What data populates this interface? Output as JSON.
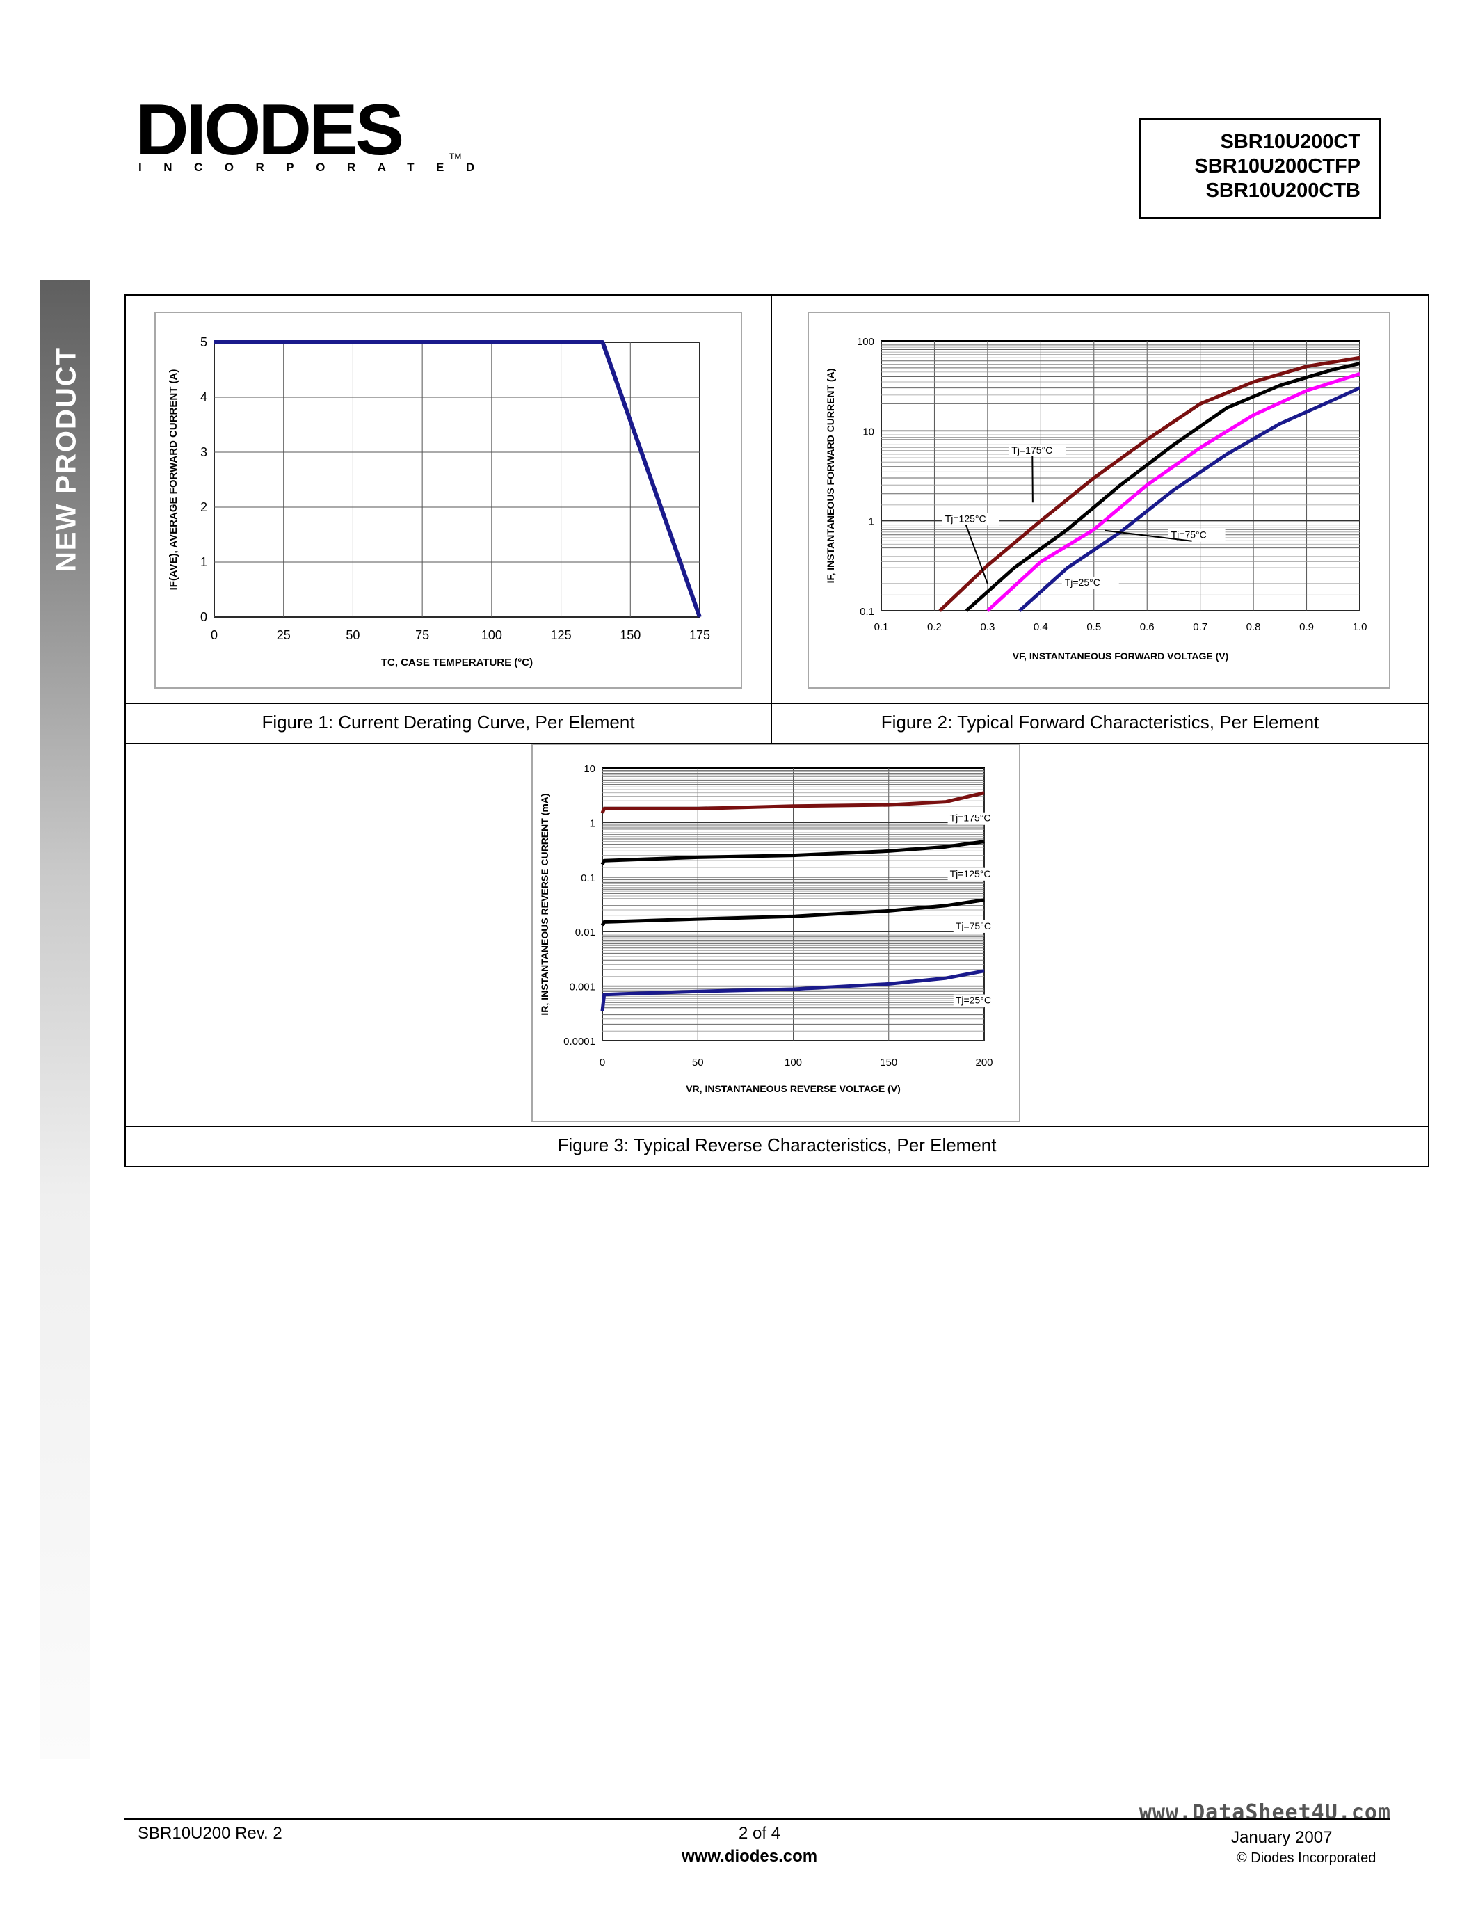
{
  "brand": {
    "name": "DIODES",
    "subtitle": "INCORPORATED",
    "trademark": "TM"
  },
  "part_numbers": [
    "SBR10U200CT",
    "SBR10U200CTFP",
    "SBR10U200CTB"
  ],
  "sidebar": {
    "label": "NEW PRODUCT"
  },
  "figures": {
    "fig1_caption": "Figure 1: Current Derating Curve, Per Element",
    "fig2_caption": "Figure 2: Typical Forward Characteristics, Per Element",
    "fig3_caption": "Figure 3: Typical Reverse Characteristics, Per Element"
  },
  "chart_data": [
    {
      "type": "line",
      "xlabel": "T<sub>C</sub>, CASE TEMPERATURE (°C)",
      "xlabel_text": "TC, CASE TEMPERATURE (°C)",
      "ylabel_text": "IF(AVE), AVERAGE FORWARD CURRENT (A)",
      "xlim": [
        0,
        175
      ],
      "ylim": [
        0,
        5
      ],
      "x_ticks": [
        "0",
        "25",
        "50",
        "75",
        "100",
        "125",
        "150",
        "175"
      ],
      "y_ticks": [
        "0",
        "1",
        "2",
        "3",
        "4",
        "5"
      ],
      "grid": true,
      "series": [
        {
          "color": "#1a1a8c",
          "x": [
            0,
            140,
            175
          ],
          "y": [
            5,
            5,
            0
          ]
        }
      ]
    },
    {
      "type": "line",
      "xlabel_text": "VF, INSTANTANEOUS FORWARD VOLTAGE (V)",
      "ylabel_text": "IF, INSTANTANEOUS FORWARD CURRENT (A)",
      "xlim": [
        0.1,
        1.0
      ],
      "ylim": [
        0.1,
        100
      ],
      "yscale": "log",
      "x_ticks": [
        "0.1",
        "0.2",
        "0.3",
        "0.4",
        "0.5",
        "0.6",
        "0.7",
        "0.8",
        "0.9",
        "1.0"
      ],
      "y_ticks": [
        "0.1",
        "1",
        "10",
        "100"
      ],
      "grid": true,
      "series": [
        {
          "name": "Tj=175°C",
          "color": "#7a1010",
          "x": [
            0.21,
            0.3,
            0.4,
            0.5,
            0.6,
            0.7,
            0.8,
            0.9,
            1.0
          ],
          "y": [
            0.1,
            0.32,
            1.0,
            3.0,
            8.0,
            20,
            35,
            52,
            65
          ]
        },
        {
          "name": "Tj=125°C",
          "color": "#000000",
          "x": [
            0.26,
            0.35,
            0.45,
            0.55,
            0.65,
            0.75,
            0.85,
            0.95,
            1.0
          ],
          "y": [
            0.1,
            0.3,
            0.8,
            2.5,
            7.0,
            18,
            32,
            48,
            56
          ]
        },
        {
          "name": "Tj=75°C",
          "color": "#ff00ff",
          "x": [
            0.3,
            0.4,
            0.5,
            0.6,
            0.7,
            0.8,
            0.9,
            1.0
          ],
          "y": [
            0.1,
            0.35,
            0.8,
            2.5,
            6.5,
            15,
            28,
            43
          ]
        },
        {
          "name": "Tj=25°C",
          "color": "#1a1a8c",
          "x": [
            0.36,
            0.45,
            0.55,
            0.65,
            0.75,
            0.85,
            0.95,
            1.0
          ],
          "y": [
            0.1,
            0.3,
            0.75,
            2.2,
            5.5,
            12,
            22,
            30
          ]
        }
      ],
      "annotations": [
        "Tj=175°C",
        "Tj=125°C",
        "Tj=75°C",
        "Tj=25°C"
      ]
    },
    {
      "type": "line",
      "xlabel_text": "VR, INSTANTANEOUS REVERSE VOLTAGE (V)",
      "ylabel_text": "IR, INSTANTANEOUS REVERSE CURRENT (mA)",
      "xlim": [
        0,
        200
      ],
      "ylim": [
        0.0001,
        10
      ],
      "yscale": "log",
      "x_ticks": [
        "0",
        "50",
        "100",
        "150",
        "200"
      ],
      "y_ticks": [
        "0.0001",
        "0.001",
        "0.01",
        "0.1",
        "1",
        "10"
      ],
      "grid": true,
      "series": [
        {
          "name": "Tj=175°C",
          "color": "#7a1010",
          "x": [
            0,
            1,
            50,
            100,
            150,
            180,
            200
          ],
          "y": [
            1.5,
            1.8,
            1.8,
            2.0,
            2.1,
            2.4,
            3.5
          ]
        },
        {
          "name": "Tj=125°C",
          "color": "#000000",
          "x": [
            0,
            1,
            50,
            100,
            150,
            180,
            200
          ],
          "y": [
            0.17,
            0.2,
            0.23,
            0.25,
            0.3,
            0.36,
            0.45
          ]
        },
        {
          "name": "Tj=75°C",
          "color": "#000000",
          "x": [
            0,
            1,
            50,
            100,
            150,
            180,
            200
          ],
          "y": [
            0.013,
            0.015,
            0.017,
            0.019,
            0.024,
            0.03,
            0.038
          ]
        },
        {
          "name": "Tj=25°C",
          "color": "#1a1a8c",
          "x": [
            0,
            1,
            50,
            100,
            150,
            180,
            200
          ],
          "y": [
            0.00035,
            0.0007,
            0.0008,
            0.00088,
            0.0011,
            0.0014,
            0.0019
          ]
        }
      ],
      "annotations": [
        "Tj=175°C",
        "Tj=125°C",
        "Tj=75°C",
        "Tj=25°C"
      ]
    }
  ],
  "footer": {
    "left": "SBR10U200 Rev. 2",
    "center_page": "2 of 4",
    "center_url": "www.diodes.com",
    "right_date": "January 2007",
    "right_copyright": "© Diodes Incorporated",
    "watermark": "www.DataSheet4U.com"
  }
}
